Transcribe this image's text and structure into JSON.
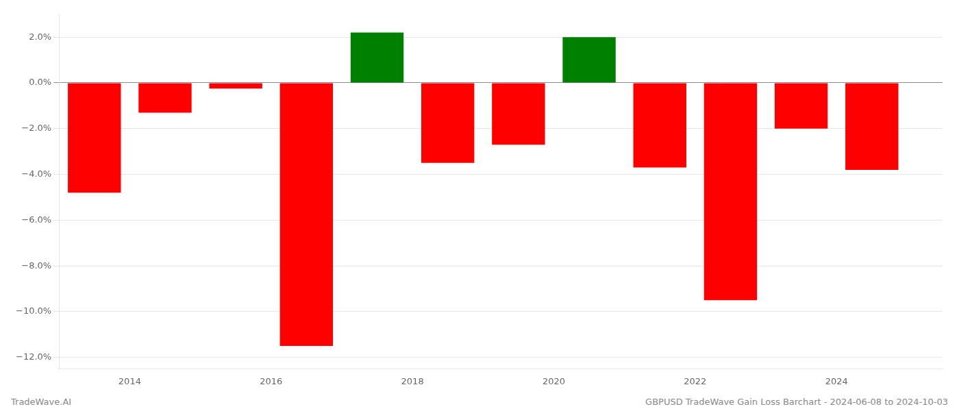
{
  "chart_data": {
    "type": "bar",
    "x": [
      2013.5,
      2014.5,
      2015.5,
      2016.5,
      2017.5,
      2018.5,
      2019.5,
      2020.5,
      2021.5,
      2022.5,
      2023.5,
      2024.5
    ],
    "values": [
      -4.8,
      -1.3,
      -0.25,
      -11.5,
      2.2,
      -3.5,
      -2.7,
      2.0,
      -3.7,
      -9.5,
      -2.0,
      -3.8
    ],
    "colors": [
      "#ff0000",
      "#ff0000",
      "#ff0000",
      "#ff0000",
      "#008000",
      "#ff0000",
      "#ff0000",
      "#008000",
      "#ff0000",
      "#ff0000",
      "#ff0000",
      "#ff0000"
    ],
    "xlim": [
      2013.0,
      2025.5
    ],
    "xticks": [
      2014,
      2016,
      2018,
      2020,
      2022,
      2024
    ],
    "ylim": [
      -12.5,
      3.0
    ],
    "yticks": [
      {
        "value": 2.0,
        "label": "2.0%"
      },
      {
        "value": 0.0,
        "label": "0.0%"
      },
      {
        "value": -2.0,
        "label": "−2.0%"
      },
      {
        "value": -4.0,
        "label": "−4.0%"
      },
      {
        "value": -6.0,
        "label": "−6.0%"
      },
      {
        "value": -8.0,
        "label": "−8.0%"
      },
      {
        "value": -10.0,
        "label": "−10.0%"
      },
      {
        "value": -12.0,
        "label": "−12.0%"
      }
    ],
    "grid": true,
    "annotations": [
      "TradeWave.AI",
      "GBPUSD TradeWave Gain Loss Barchart - 2024-06-08 to 2024-10-03"
    ]
  }
}
